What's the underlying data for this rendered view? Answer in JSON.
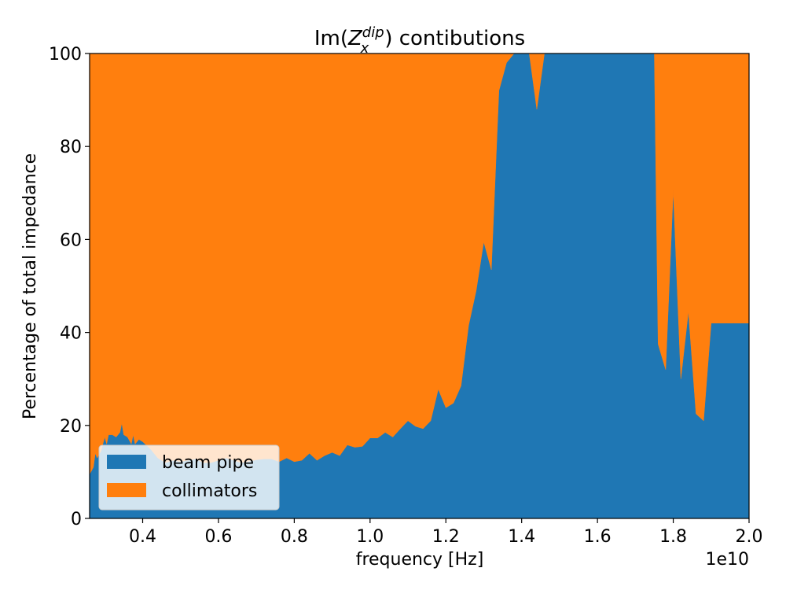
{
  "chart_data": {
    "type": "area",
    "title_prefix": "Im(",
    "title_symbol": "Z",
    "title_superscript": "dip",
    "title_subscript": "x",
    "title_suffix": ") contibutions",
    "xlabel": "frequency [Hz]",
    "ylabel": "Percentage of total impedance",
    "x_offset_text": "1e10",
    "x_scale": 10000000000,
    "xlim": [
      0.26,
      2.0
    ],
    "ylim": [
      0,
      100
    ],
    "x_ticks": [
      0.4,
      0.6,
      0.8,
      1.0,
      1.2,
      1.4,
      1.6,
      1.8,
      2.0
    ],
    "x_tick_labels": [
      "0.4",
      "0.6",
      "0.8",
      "1.0",
      "1.2",
      "1.4",
      "1.6",
      "1.8",
      "2.0"
    ],
    "y_ticks": [
      0,
      20,
      40,
      60,
      80,
      100
    ],
    "y_tick_labels": [
      "0",
      "20",
      "40",
      "60",
      "80",
      "100"
    ],
    "stacked": true,
    "legend_position": "lower-left",
    "x": [
      0.26,
      0.27,
      0.275,
      0.28,
      0.29,
      0.3,
      0.305,
      0.31,
      0.32,
      0.33,
      0.34,
      0.345,
      0.35,
      0.36,
      0.37,
      0.375,
      0.38,
      0.39,
      0.4,
      0.42,
      0.44,
      0.46,
      0.48,
      0.5,
      0.52,
      0.54,
      0.56,
      0.58,
      0.6,
      0.62,
      0.64,
      0.66,
      0.68,
      0.7,
      0.72,
      0.74,
      0.76,
      0.78,
      0.8,
      0.82,
      0.84,
      0.86,
      0.88,
      0.9,
      0.92,
      0.94,
      0.96,
      0.98,
      1.0,
      1.02,
      1.04,
      1.06,
      1.08,
      1.1,
      1.12,
      1.14,
      1.16,
      1.18,
      1.2,
      1.22,
      1.24,
      1.26,
      1.28,
      1.3,
      1.32,
      1.34,
      1.36,
      1.38,
      1.39,
      1.4,
      1.41,
      1.42,
      1.43,
      1.44,
      1.46,
      1.47,
      1.48,
      1.5,
      1.6,
      1.7,
      1.74,
      1.75,
      1.76,
      1.78,
      1.8,
      1.82,
      1.84,
      1.86,
      1.88,
      1.9,
      1.92,
      1.94,
      1.96,
      1.98,
      2.0
    ],
    "series": [
      {
        "name": "beam pipe",
        "color": "#1f77b4",
        "values": [
          9.5,
          11,
          14,
          13,
          14.5,
          17.5,
          16,
          18,
          18,
          17.5,
          18.5,
          20.5,
          18,
          17.5,
          16,
          18,
          16,
          17,
          16.5,
          15,
          13,
          12,
          12.5,
          12.2,
          12.5,
          12.8,
          12,
          12,
          12.5,
          13,
          12.5,
          12,
          12.3,
          12.6,
          12.8,
          12.8,
          12.2,
          13,
          12.2,
          12.5,
          14,
          12.5,
          13.5,
          14.2,
          13.5,
          15.8,
          15.3,
          15.5,
          17.3,
          17.3,
          18.5,
          17.5,
          19.3,
          21,
          19.8,
          19.3,
          21,
          27.8,
          23.8,
          24.8,
          28.5,
          41.5,
          49,
          59.5,
          53.5,
          92,
          98,
          100,
          100,
          100,
          100,
          100,
          94,
          88,
          100,
          100,
          100,
          100,
          100,
          100,
          100,
          100,
          37.5,
          32,
          70.5,
          30,
          44.5,
          22.5,
          21,
          42,
          42,
          42,
          42,
          42,
          42
        ]
      },
      {
        "name": "collimators",
        "color": "#ff7f0e",
        "values": [
          90.5,
          89,
          86,
          87,
          85.5,
          82.5,
          84,
          82,
          82,
          82.5,
          81.5,
          79.5,
          82,
          82.5,
          84,
          82,
          84,
          83,
          83.5,
          85,
          87,
          88,
          87.5,
          87.8,
          87.5,
          87.2,
          88,
          88,
          87.5,
          87,
          87.5,
          88,
          87.7,
          87.4,
          87.2,
          87.2,
          87.8,
          87,
          87.8,
          87.5,
          86,
          87.5,
          86.5,
          85.8,
          86.5,
          84.2,
          84.7,
          84.5,
          82.7,
          82.7,
          81.5,
          82.5,
          80.7,
          79,
          80.2,
          80.7,
          79,
          72.2,
          76.2,
          75.2,
          71.5,
          58.5,
          51,
          40.5,
          46.5,
          8,
          2,
          0,
          0,
          0,
          0,
          0,
          6,
          12,
          0,
          0,
          0,
          0,
          0,
          0,
          0,
          0,
          62.5,
          68,
          29.5,
          70,
          55.5,
          77.5,
          79,
          58,
          58,
          58,
          58,
          58,
          58
        ]
      }
    ]
  }
}
